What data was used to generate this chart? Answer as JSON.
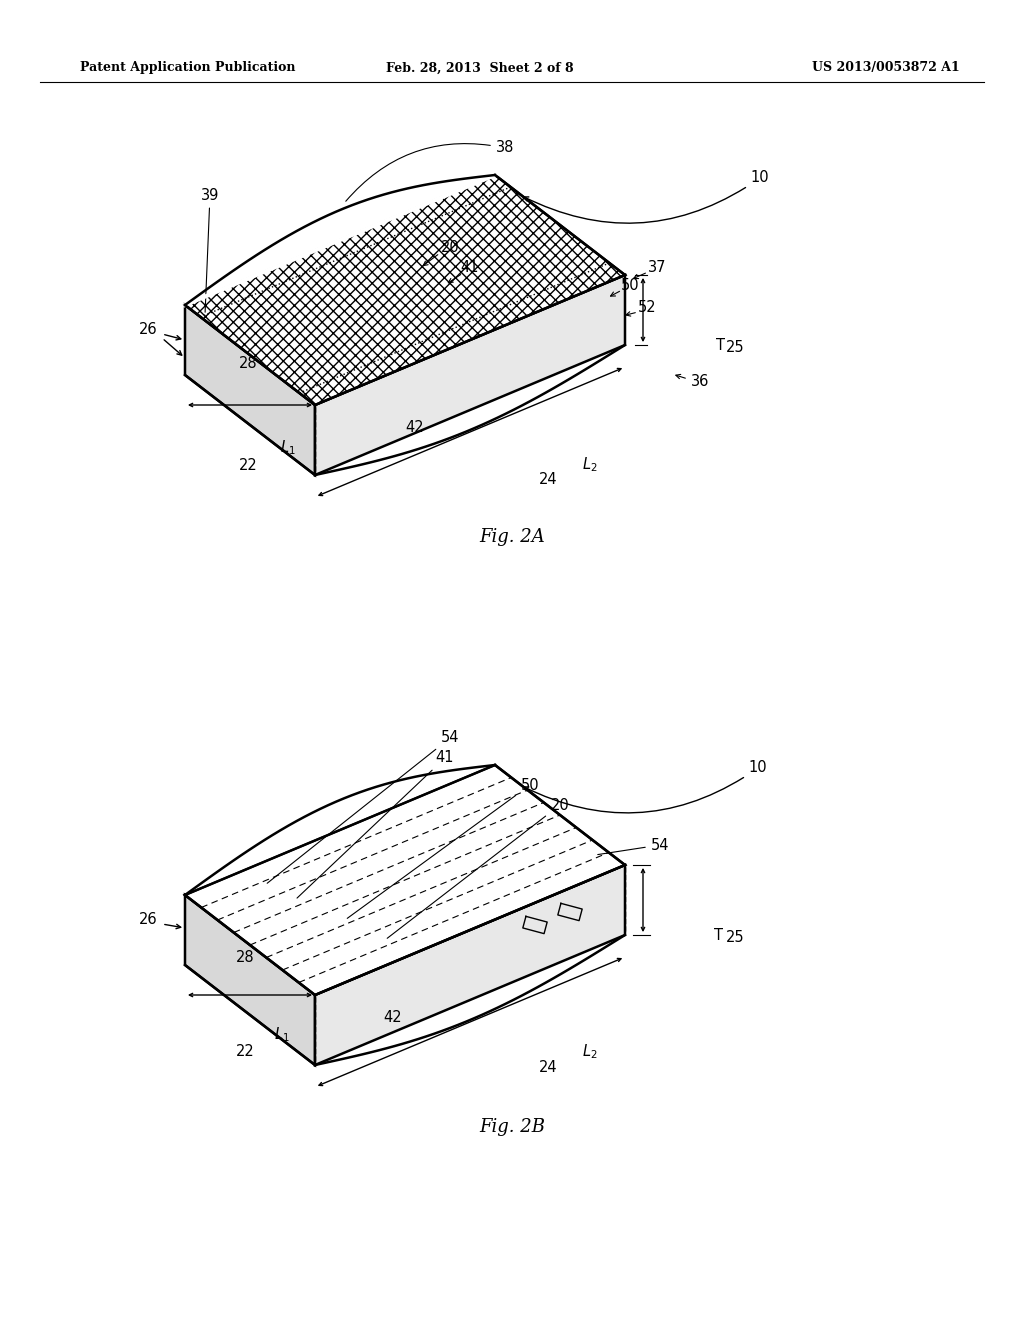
{
  "header_left": "Patent Application Publication",
  "header_center": "Feb. 28, 2013  Sheet 2 of 8",
  "header_right": "US 2013/0053872 A1",
  "fig2a_label": "Fig. 2A",
  "fig2b_label": "Fig. 2B",
  "bg_color": "#ffffff",
  "line_color": "#000000"
}
